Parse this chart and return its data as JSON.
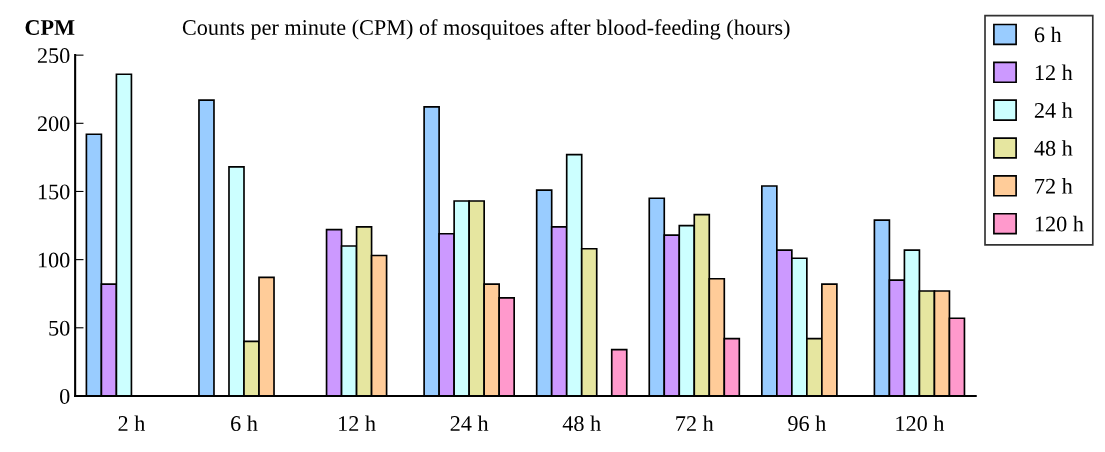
{
  "chart_data": {
    "type": "bar",
    "title": "Counts per minute (CPM) of mosquitoes after blood-feeding (hours)",
    "ylabel": "CPM",
    "categories": [
      "2 h",
      "6 h",
      "12 h",
      "24 h",
      "48 h",
      "72 h",
      "96 h",
      "120 h"
    ],
    "series": [
      {
        "name": "6 h",
        "color": "#99ccff",
        "values": [
          192,
          217,
          null,
          212,
          151,
          145,
          154,
          129
        ]
      },
      {
        "name": "12 h",
        "color": "#cc99ff",
        "values": [
          82,
          null,
          122,
          119,
          124,
          118,
          107,
          85
        ]
      },
      {
        "name": "24 h",
        "color": "#ccffff",
        "values": [
          236,
          168,
          110,
          143,
          177,
          125,
          101,
          107
        ]
      },
      {
        "name": "48 h",
        "color": "#e6e6a0",
        "values": [
          null,
          40,
          124,
          143,
          108,
          133,
          42,
          77
        ]
      },
      {
        "name": "72 h",
        "color": "#ffcc99",
        "values": [
          null,
          87,
          103,
          82,
          null,
          86,
          82,
          77
        ]
      },
      {
        "name": "120 h",
        "color": "#ff99cc",
        "values": [
          null,
          null,
          null,
          72,
          34,
          42,
          null,
          57
        ]
      }
    ],
    "ylim": [
      0,
      250
    ],
    "yticks": [
      0,
      50,
      100,
      150,
      200,
      250
    ],
    "grid": false,
    "legend": "top right"
  }
}
